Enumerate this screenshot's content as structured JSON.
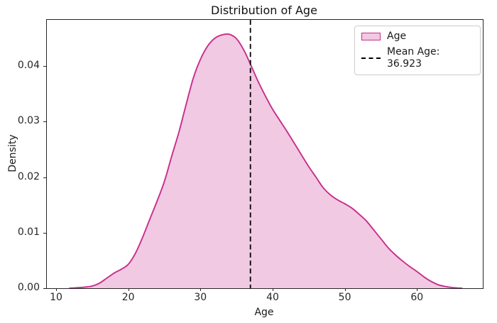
{
  "title": "Distribution of Age",
  "xlabel": "Age",
  "ylabel": "Density",
  "legend": {
    "items": [
      {
        "label": "Age",
        "swatch": "filled-patch"
      },
      {
        "label": "Mean Age: 36.923",
        "swatch": "dashed-line"
      }
    ]
  },
  "colors": {
    "line": "#c82d8c",
    "fill": "#f1c9e2",
    "mean_line": "#000000",
    "spine": "#262626"
  },
  "chart_data": {
    "type": "area",
    "title": "Distribution of Age",
    "xlabel": "Age",
    "ylabel": "Density",
    "xlim": [
      8.72,
      69.12
    ],
    "ylim": [
      0,
      0.0483
    ],
    "grid": false,
    "legend_position": "upper right",
    "xticks": [
      10,
      20,
      30,
      40,
      50,
      60
    ],
    "xtick_labels": [
      "10",
      "20",
      "30",
      "40",
      "50",
      "60"
    ],
    "yticks": [
      0.0,
      0.01,
      0.02,
      0.03,
      0.04
    ],
    "ytick_labels": [
      "0.00",
      "0.01",
      "0.02",
      "0.03",
      "0.04"
    ],
    "mean": 36.923,
    "peak": {
      "x": 34,
      "y": 0.0457
    },
    "series": [
      {
        "name": "Age",
        "x": [
          11.8,
          13,
          14,
          15,
          16,
          17,
          18,
          19,
          20,
          21,
          22,
          23,
          24,
          25,
          26,
          27,
          28,
          29,
          30,
          31,
          32,
          33,
          34,
          35,
          36,
          37,
          38,
          39,
          40,
          41,
          42,
          43,
          44,
          45,
          46,
          47,
          48,
          49,
          50,
          51,
          52,
          53,
          54,
          55,
          56,
          57,
          58,
          59,
          60,
          61,
          62,
          63,
          64,
          65,
          66.3
        ],
        "y": [
          0,
          0.0001,
          0.0002,
          0.0004,
          0.0009,
          0.0018,
          0.0027,
          0.0034,
          0.0043,
          0.0063,
          0.0092,
          0.0125,
          0.0157,
          0.0192,
          0.0237,
          0.028,
          0.033,
          0.0378,
          0.0412,
          0.0436,
          0.045,
          0.0456,
          0.0457,
          0.0449,
          0.0429,
          0.0401,
          0.0372,
          0.0346,
          0.0322,
          0.0302,
          0.0282,
          0.0261,
          0.024,
          0.0219,
          0.02,
          0.0181,
          0.0168,
          0.0159,
          0.0152,
          0.0144,
          0.0133,
          0.0121,
          0.0105,
          0.0089,
          0.0073,
          0.006,
          0.0049,
          0.0039,
          0.003,
          0.002,
          0.0012,
          0.0006,
          0.0003,
          0.0001,
          0
        ]
      }
    ]
  }
}
